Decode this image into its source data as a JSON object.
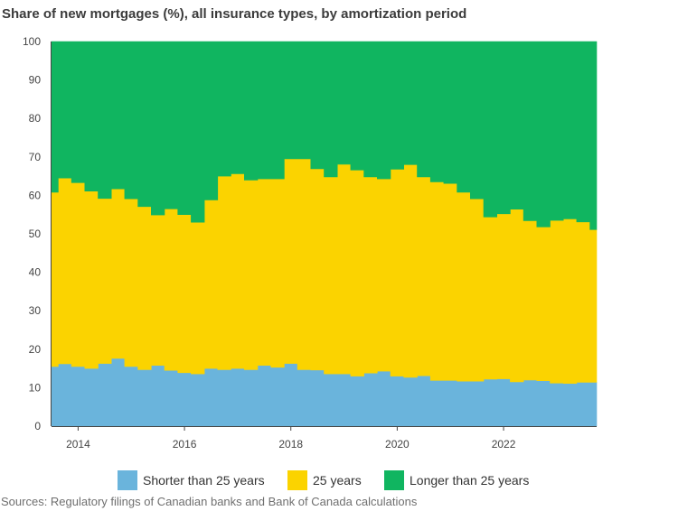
{
  "title": "Share of new mortgages (%), all insurance types, by amortization period",
  "source": "Sources: Regulatory filings of Canadian banks and Bank of Canada calculations",
  "legend": [
    {
      "label": "Shorter than 25 years",
      "color": "#6ab4dc"
    },
    {
      "label": "25 years",
      "color": "#fbd300"
    },
    {
      "label": "Longer than 25 years",
      "color": "#10b560"
    }
  ],
  "chart_data": {
    "type": "area",
    "stacked": true,
    "ylim": [
      0,
      100
    ],
    "yticks": [
      0,
      10,
      20,
      30,
      40,
      50,
      60,
      70,
      80,
      90,
      100
    ],
    "xticks": [
      "2014",
      "2016",
      "2018",
      "2020",
      "2022"
    ],
    "x": [
      "2013 Q3",
      "2013 Q4",
      "2014 Q1",
      "2014 Q2",
      "2014 Q3",
      "2014 Q4",
      "2015 Q1",
      "2015 Q2",
      "2015 Q3",
      "2015 Q4",
      "2016 Q1",
      "2016 Q2",
      "2016 Q3",
      "2016 Q4",
      "2017 Q1",
      "2017 Q2",
      "2017 Q3",
      "2017 Q4",
      "2018 Q1",
      "2018 Q2",
      "2018 Q3",
      "2018 Q4",
      "2019 Q1",
      "2019 Q2",
      "2019 Q3",
      "2019 Q4",
      "2020 Q1",
      "2020 Q2",
      "2020 Q3",
      "2020 Q4",
      "2021 Q1",
      "2021 Q2",
      "2021 Q3",
      "2021 Q4",
      "2022 Q1",
      "2022 Q2",
      "2022 Q3",
      "2022 Q4",
      "2023 Q1",
      "2023 Q2",
      "2023 Q3",
      "2023 Q4"
    ],
    "grid": false,
    "legend_position": "bottom",
    "series": [
      {
        "name": "Shorter than 25 years",
        "color": "#6ab4dc",
        "values": [
          15.5,
          16.2,
          15.5,
          15.0,
          16.3,
          17.6,
          15.5,
          14.7,
          15.8,
          14.5,
          13.9,
          13.6,
          15.0,
          14.7,
          15.0,
          14.7,
          15.8,
          15.3,
          16.3,
          14.7,
          14.6,
          13.6,
          13.6,
          13.0,
          13.8,
          14.3,
          13.0,
          12.7,
          13.1,
          11.9,
          11.9,
          11.7,
          11.7,
          12.2,
          12.3,
          11.5,
          12.0,
          11.8,
          11.2,
          11.1,
          11.4,
          11.4
        ]
      },
      {
        "name": "25 years",
        "color": "#fbd300",
        "values": [
          45.3,
          48.3,
          47.8,
          46.1,
          42.9,
          44.1,
          43.6,
          42.4,
          39.1,
          42.0,
          41.1,
          39.4,
          43.8,
          50.3,
          50.6,
          49.3,
          48.5,
          49.0,
          53.2,
          54.8,
          52.3,
          51.2,
          54.5,
          53.6,
          51.0,
          50.0,
          53.8,
          55.3,
          51.7,
          51.6,
          51.2,
          49.1,
          47.4,
          42.2,
          42.9,
          44.9,
          41.4,
          40.0,
          42.3,
          42.8,
          41.7,
          39.7
        ]
      },
      {
        "name": "Longer than 25 years",
        "color": "#10b560",
        "values": [
          39.2,
          35.5,
          36.7,
          38.9,
          40.8,
          38.3,
          40.9,
          42.9,
          45.1,
          43.5,
          45.0,
          47.0,
          41.2,
          35.0,
          34.4,
          36.0,
          35.7,
          35.7,
          30.5,
          30.5,
          33.1,
          35.2,
          31.9,
          33.4,
          35.2,
          35.7,
          33.2,
          32.0,
          35.2,
          36.5,
          36.9,
          39.2,
          40.9,
          45.6,
          44.8,
          43.6,
          46.6,
          48.2,
          46.5,
          46.1,
          46.9,
          48.9
        ]
      }
    ]
  }
}
